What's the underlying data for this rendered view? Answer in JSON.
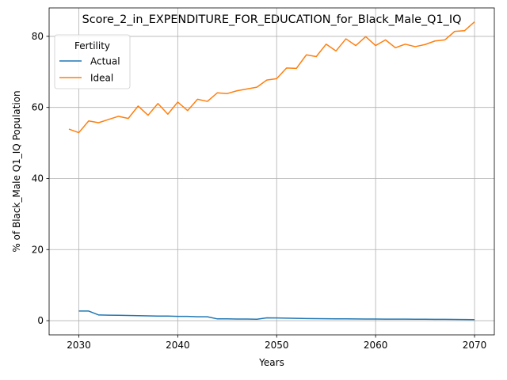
{
  "chart_data": {
    "type": "line",
    "title": "Score_2_in_EXPENDITURE_FOR_EDUCATION_for_Black_Male_Q1_IQ",
    "xlabel": "Years",
    "ylabel": "% of Black_Male Q1_IQ Population",
    "xlim": [
      2027,
      2072
    ],
    "ylim": [
      -4,
      88
    ],
    "x_ticks": [
      2030,
      2040,
      2050,
      2060,
      2070
    ],
    "y_ticks": [
      0,
      20,
      40,
      60,
      80
    ],
    "grid": true,
    "legend": {
      "title": "Fertility",
      "placement": "upper-left"
    },
    "series": [
      {
        "name": "Actual",
        "color": "#1f77b4",
        "x": [
          2030,
          2031,
          2032,
          2033,
          2034,
          2035,
          2036,
          2037,
          2038,
          2039,
          2040,
          2041,
          2042,
          2043,
          2044,
          2045,
          2046,
          2047,
          2048,
          2049,
          2050,
          2051,
          2052,
          2053,
          2054,
          2055,
          2056,
          2057,
          2058,
          2059,
          2060,
          2061,
          2062,
          2063,
          2064,
          2065,
          2066,
          2067,
          2068,
          2069,
          2070
        ],
        "values": [
          2.7,
          2.7,
          1.6,
          1.55,
          1.5,
          1.45,
          1.4,
          1.35,
          1.3,
          1.3,
          1.2,
          1.2,
          1.1,
          1.1,
          0.5,
          0.5,
          0.45,
          0.45,
          0.4,
          0.8,
          0.75,
          0.7,
          0.65,
          0.6,
          0.58,
          0.55,
          0.52,
          0.5,
          0.48,
          0.46,
          0.45,
          0.44,
          0.43,
          0.42,
          0.41,
          0.4,
          0.38,
          0.36,
          0.34,
          0.32,
          0.3
        ]
      },
      {
        "name": "Ideal",
        "color": "#ff7f0e",
        "x": [
          2029,
          2030,
          2031,
          2032,
          2033,
          2034,
          2035,
          2036,
          2037,
          2038,
          2039,
          2040,
          2041,
          2042,
          2043,
          2044,
          2045,
          2046,
          2047,
          2048,
          2049,
          2050,
          2051,
          2052,
          2053,
          2054,
          2055,
          2056,
          2057,
          2058,
          2059,
          2060,
          2061,
          2062,
          2063,
          2064,
          2065,
          2066,
          2067,
          2068,
          2069,
          2070
        ],
        "values": [
          53.9,
          52.9,
          56.2,
          55.7,
          56.6,
          57.5,
          56.9,
          60.4,
          57.8,
          61.1,
          58.1,
          61.5,
          59.1,
          62.3,
          61.7,
          64.1,
          63.9,
          64.7,
          65.2,
          65.7,
          67.7,
          68.1,
          71.1,
          71.0,
          74.8,
          74.3,
          77.8,
          75.9,
          79.3,
          77.4,
          79.9,
          77.4,
          79.0,
          76.8,
          77.8,
          77.1,
          77.7,
          78.7,
          79.0,
          81.4,
          81.6,
          84.1
        ]
      }
    ]
  }
}
